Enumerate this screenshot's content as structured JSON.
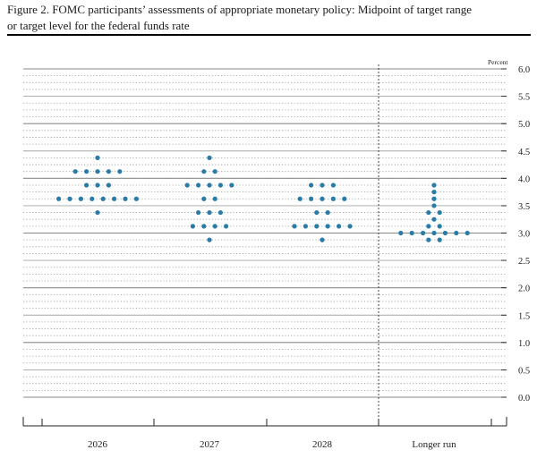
{
  "figure": {
    "title_line1": "Figure 2. FOMC participants’ assessments of appropriate monetary policy: Midpoint of target range",
    "title_line2": "or target level for the federal funds rate"
  },
  "chart_data": {
    "type": "scatter",
    "title": "Figure 2. FOMC participants’ assessments of appropriate monetary policy: Midpoint of target range or target level for the federal funds rate",
    "unit_label": "Percent",
    "ylim": [
      0.0,
      6.0
    ],
    "y_ticks": [
      0.0,
      0.5,
      1.0,
      1.5,
      2.0,
      2.5,
      3.0,
      3.5,
      4.0,
      4.5,
      5.0,
      5.5,
      6.0
    ],
    "y_tick_labels": [
      "0.0",
      "0.5",
      "1.0",
      "1.5",
      "2.0",
      "2.5",
      "3.0",
      "3.5",
      "4.0",
      "4.5",
      "5.0",
      "5.5",
      "6.0"
    ],
    "grid": "horizontal lines at every 0.5 solid, every 0.125 dotted; vertical dashed separator before Longer run",
    "dot_color": "#2a7ba8",
    "categories": [
      "2026",
      "2027",
      "2028",
      "Longer run"
    ],
    "series": [
      {
        "category": "2026",
        "points": [
          {
            "y": 4.375,
            "count": 1
          },
          {
            "y": 4.125,
            "count": 5
          },
          {
            "y": 3.875,
            "count": 3
          },
          {
            "y": 3.625,
            "count": 8
          },
          {
            "y": 3.375,
            "count": 1
          }
        ]
      },
      {
        "category": "2027",
        "points": [
          {
            "y": 4.375,
            "count": 1
          },
          {
            "y": 4.125,
            "count": 2
          },
          {
            "y": 3.875,
            "count": 5
          },
          {
            "y": 3.625,
            "count": 2
          },
          {
            "y": 3.375,
            "count": 3
          },
          {
            "y": 3.125,
            "count": 4
          },
          {
            "y": 2.875,
            "count": 1
          }
        ]
      },
      {
        "category": "2028",
        "points": [
          {
            "y": 3.875,
            "count": 3
          },
          {
            "y": 3.625,
            "count": 5
          },
          {
            "y": 3.375,
            "count": 2
          },
          {
            "y": 3.125,
            "count": 6
          },
          {
            "y": 2.875,
            "count": 1
          }
        ]
      },
      {
        "category": "Longer run",
        "points": [
          {
            "y": 3.875,
            "count": 1
          },
          {
            "y": 3.75,
            "count": 1
          },
          {
            "y": 3.625,
            "count": 1
          },
          {
            "y": 3.5,
            "count": 1
          },
          {
            "y": 3.375,
            "count": 2
          },
          {
            "y": 3.25,
            "count": 1
          },
          {
            "y": 3.125,
            "count": 2
          },
          {
            "y": 3.0,
            "count": 7
          },
          {
            "y": 2.875,
            "count": 2
          }
        ]
      }
    ]
  }
}
